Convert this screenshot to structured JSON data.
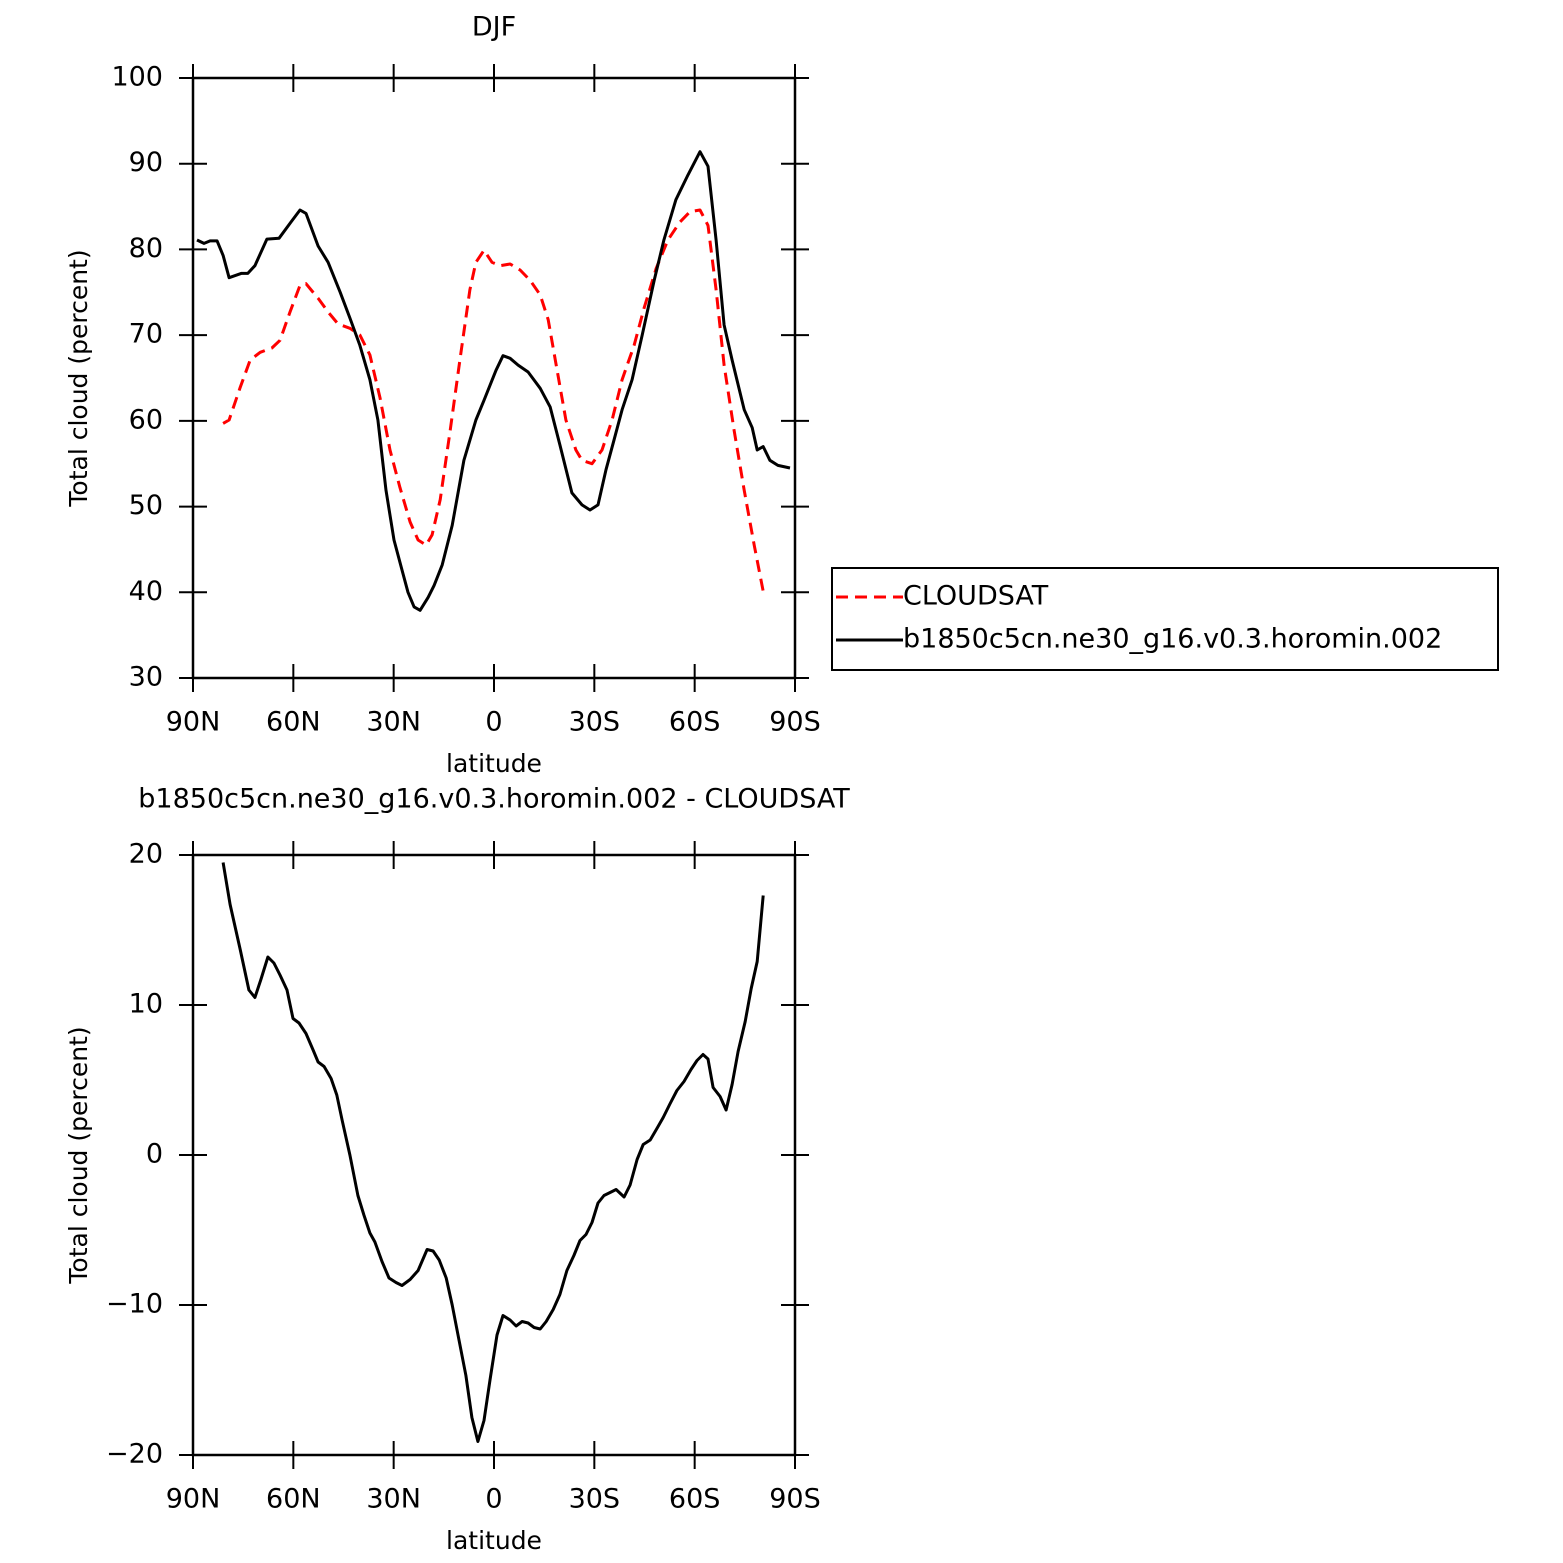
{
  "chart_data": [
    {
      "type": "line",
      "title": "DJF",
      "xlabel": "latitude",
      "ylabel": "Total cloud (percent)",
      "xlim": [
        90,
        -90
      ],
      "xticks": [
        {
          "value": 90,
          "label": "90N"
        },
        {
          "value": 60,
          "label": "60N"
        },
        {
          "value": 30,
          "label": "30N"
        },
        0,
        {
          "value": -30,
          "label": "30S"
        },
        {
          "value": -60,
          "label": "60S"
        },
        {
          "value": -90,
          "label": "90S"
        }
      ],
      "ylim": [
        30,
        100
      ],
      "yticks": [
        30,
        40,
        50,
        60,
        70,
        80,
        90,
        100
      ],
      "legend": "right",
      "series": [
        {
          "name": "CLOUDSAT",
          "color": "#ff0000",
          "dashed": true,
          "x": [
            81.0,
            79.2,
            75.9,
            72.9,
            69.9,
            66.4,
            64.0,
            61.0,
            58.0,
            56.2,
            52.6,
            49.6,
            46.6,
            43.1,
            40.1,
            37.1,
            34.1,
            31.1,
            28.1,
            25.1,
            22.7,
            20.3,
            18.5,
            16.1,
            13.1,
            10.2,
            7.2,
            5.4,
            3.0,
            0.6,
            -1.8,
            -4.8,
            -7.8,
            -10.8,
            -13.8,
            -16.2,
            -18.6,
            -21.5,
            -24.5,
            -26.3,
            -29.3,
            -32.3,
            -35.3,
            -38.3,
            -41.9,
            -44.9,
            -48.5,
            -52.0,
            -55.6,
            -58.6,
            -61.6,
            -64.0,
            -66.4,
            -68.8,
            -71.8,
            -74.8,
            -77.8,
            -80.7
          ],
          "values": [
            59.7,
            60.1,
            63.9,
            67.1,
            68.0,
            68.5,
            69.4,
            72.7,
            75.8,
            76.0,
            74.3,
            72.7,
            71.3,
            70.8,
            70.0,
            67.7,
            62.7,
            56.6,
            52.2,
            48.2,
            46.1,
            45.5,
            46.7,
            50.8,
            58.9,
            67.1,
            75.3,
            78.5,
            79.9,
            78.5,
            78.1,
            78.3,
            77.6,
            76.4,
            74.7,
            71.8,
            66.5,
            60.1,
            56.6,
            55.4,
            55.0,
            56.6,
            60.1,
            64.8,
            68.8,
            73.2,
            77.8,
            81.1,
            83.2,
            84.4,
            84.6,
            82.8,
            75.3,
            66.5,
            58.9,
            51.9,
            45.5,
            39.7
          ]
        },
        {
          "name": "b1850c5cn.ne30_g16.v0.3.horomin.002",
          "color": "#000000",
          "dashed": false,
          "x": [
            88.8,
            86.7,
            84.9,
            82.8,
            81.0,
            79.2,
            75.6,
            73.6,
            71.5,
            67.9,
            64.3,
            60.7,
            58.0,
            56.2,
            52.6,
            49.6,
            46.0,
            43.1,
            40.1,
            37.1,
            34.7,
            32.3,
            29.9,
            27.5,
            25.7,
            23.9,
            22.1,
            19.7,
            17.9,
            15.5,
            12.5,
            9.0,
            5.4,
            3.0,
            -0.6,
            -2.7,
            -4.8,
            -7.2,
            -10.2,
            -13.8,
            -16.8,
            -19.7,
            -23.3,
            -26.3,
            -28.7,
            -31.1,
            -33.5,
            -35.9,
            -38.3,
            -41.3,
            -44.3,
            -47.9,
            -50.8,
            -54.4,
            -58.0,
            -61.6,
            -64.0,
            -66.4,
            -68.8,
            -71.2,
            -74.8,
            -77.2,
            -78.7,
            -80.5,
            -82.5,
            -84.9,
            -88.5
          ],
          "values": [
            81.1,
            80.7,
            81.0,
            81.0,
            79.3,
            76.7,
            77.2,
            77.2,
            78.1,
            81.2,
            81.3,
            83.2,
            84.6,
            84.2,
            80.4,
            78.5,
            75.0,
            72.0,
            68.8,
            64.8,
            60.1,
            51.9,
            46.1,
            42.6,
            40.0,
            38.3,
            37.9,
            39.4,
            40.8,
            43.2,
            47.8,
            55.4,
            60.1,
            62.4,
            65.9,
            67.6,
            67.3,
            66.5,
            65.7,
            63.8,
            61.6,
            57.2,
            51.6,
            50.2,
            49.6,
            50.2,
            54.3,
            57.8,
            61.3,
            64.8,
            70.0,
            76.4,
            81.1,
            85.8,
            88.7,
            91.4,
            89.7,
            81.1,
            71.2,
            67.1,
            61.3,
            59.2,
            56.6,
            57.0,
            55.4,
            54.8,
            54.5
          ]
        }
      ]
    },
    {
      "type": "line",
      "title": "b1850c5cn.ne30_g16.v0.3.horomin.002 - CLOUDSAT",
      "xlabel": "latitude",
      "ylabel": "Total cloud (percent)",
      "xlim": [
        90,
        -90
      ],
      "xticks": [
        {
          "value": 90,
          "label": "90N"
        },
        {
          "value": 60,
          "label": "60N"
        },
        {
          "value": 30,
          "label": "30N"
        },
        0,
        {
          "value": -30,
          "label": "30S"
        },
        {
          "value": -60,
          "label": "60S"
        },
        {
          "value": -90,
          "label": "90S"
        }
      ],
      "ylim": [
        -20,
        20
      ],
      "yticks": [
        {
          "value": -20,
          "label": "−20"
        },
        {
          "value": -10,
          "label": "−10"
        },
        0,
        10,
        20
      ],
      "series": [
        {
          "color": "#000000",
          "dashed": false,
          "x": [
            81.0,
            78.9,
            75.9,
            73.3,
            71.5,
            69.7,
            67.6,
            65.8,
            64.0,
            61.9,
            60.1,
            58.3,
            56.2,
            54.1,
            52.6,
            50.8,
            48.7,
            47.0,
            45.4,
            43.1,
            40.7,
            38.9,
            37.1,
            35.6,
            33.5,
            31.4,
            29.3,
            27.5,
            25.1,
            22.7,
            20.0,
            18.2,
            16.4,
            14.3,
            12.5,
            10.5,
            8.4,
            6.6,
            4.8,
            3.0,
            1.2,
            -0.9,
            -2.7,
            -4.8,
            -6.6,
            -8.4,
            -10.2,
            -12.0,
            -13.8,
            -15.6,
            -17.7,
            -19.7,
            -21.8,
            -23.9,
            -25.7,
            -27.5,
            -29.3,
            -31.1,
            -32.9,
            -34.7,
            -36.5,
            -38.9,
            -40.7,
            -42.8,
            -44.6,
            -46.7,
            -48.8,
            -50.6,
            -52.6,
            -54.7,
            -56.8,
            -58.9,
            -60.7,
            -62.5,
            -64.0,
            -65.5,
            -67.6,
            -69.4,
            -71.2,
            -73.0,
            -75.1,
            -76.9,
            -78.7,
            -80.5
          ],
          "values": [
            19.5,
            16.7,
            13.7,
            11.0,
            10.5,
            11.7,
            13.2,
            12.8,
            12.0,
            11.0,
            9.1,
            8.8,
            8.1,
            7.0,
            6.2,
            5.9,
            5.1,
            4.0,
            2.3,
            0.0,
            -2.7,
            -4.0,
            -5.2,
            -5.8,
            -7.1,
            -8.2,
            -8.5,
            -8.7,
            -8.3,
            -7.7,
            -6.3,
            -6.4,
            -7.0,
            -8.2,
            -10.0,
            -12.3,
            -14.7,
            -17.5,
            -19.1,
            -17.7,
            -15.0,
            -12.0,
            -10.7,
            -11.0,
            -11.4,
            -11.1,
            -11.2,
            -11.5,
            -11.6,
            -11.1,
            -10.3,
            -9.3,
            -7.7,
            -6.7,
            -5.7,
            -5.3,
            -4.5,
            -3.2,
            -2.7,
            -2.5,
            -2.3,
            -2.8,
            -2.0,
            -0.3,
            0.7,
            1.0,
            1.8,
            2.5,
            3.4,
            4.3,
            4.9,
            5.7,
            6.3,
            6.7,
            6.4,
            4.5,
            3.9,
            3.0,
            4.7,
            6.9,
            8.9,
            11.1,
            12.9,
            17.3
          ]
        }
      ]
    }
  ]
}
